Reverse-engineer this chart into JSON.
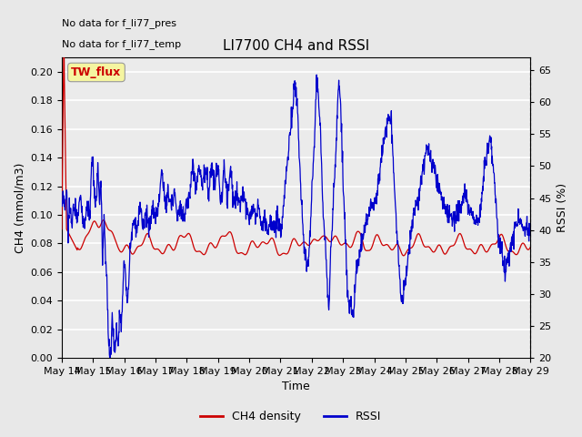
{
  "title": "LI7700 CH4 and RSSI",
  "xlabel": "Time",
  "ylabel_left": "CH4 (mmol/m3)",
  "ylabel_right": "RSSI (%)",
  "annotation1": "No data for f_li77_pres",
  "annotation2": "No data for f_li77_temp",
  "site_label": "TW_flux",
  "ylim_left": [
    0.0,
    0.21
  ],
  "ylim_right": [
    20,
    67
  ],
  "yticks_left": [
    0.0,
    0.02,
    0.04,
    0.06,
    0.08,
    0.1,
    0.12,
    0.14,
    0.16,
    0.18,
    0.2
  ],
  "yticks_right": [
    20,
    25,
    30,
    35,
    40,
    45,
    50,
    55,
    60,
    65
  ],
  "ch4_color": "#cc0000",
  "rssi_color": "#0000cc",
  "bg_color": "#e8e8e8",
  "plot_bg_color": "#ebebeb",
  "legend_ch4": "CH4 density",
  "legend_rssi": "RSSI",
  "x_tick_labels": [
    "May 14",
    "May 15",
    "May 16",
    "May 17",
    "May 18",
    "May 19",
    "May 20",
    "May 21",
    "May 22",
    "May 23",
    "May 24",
    "May 25",
    "May 26",
    "May 27",
    "May 28",
    "May 29"
  ],
  "n_days": 15
}
